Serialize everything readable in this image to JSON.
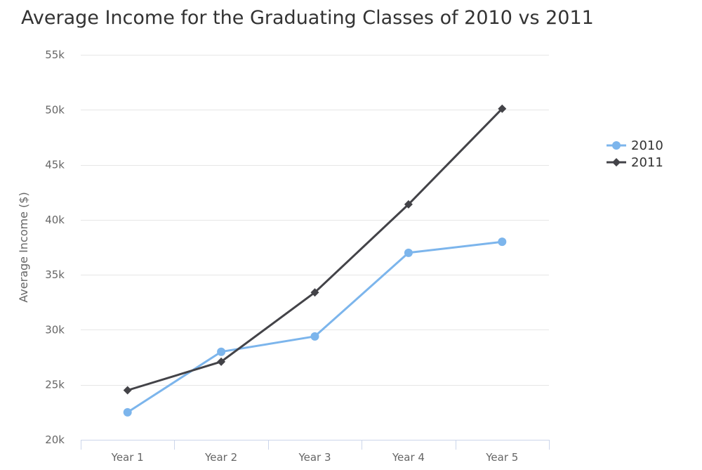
{
  "chart_data": {
    "type": "line",
    "title": "Average Income for the Graduating Classes of 2010 vs 2011",
    "ylabel": "Average Income ($)",
    "categories": [
      "Year 1",
      "Year 2",
      "Year 3",
      "Year 4",
      "Year 5"
    ],
    "ylim": [
      20000,
      55000
    ],
    "yticks": [
      20000,
      25000,
      30000,
      35000,
      40000,
      45000,
      50000,
      55000
    ],
    "ytick_labels": [
      "20k",
      "25k",
      "30k",
      "35k",
      "40k",
      "45k",
      "50k",
      "55k"
    ],
    "grid": true,
    "legend": "right",
    "series": [
      {
        "name": "2010",
        "color": "#7cb5ec",
        "marker": "circle",
        "values": [
          22500,
          28000,
          29400,
          37000,
          38000
        ]
      },
      {
        "name": "2011",
        "color": "#434348",
        "marker": "diamond",
        "values": [
          24500,
          27100,
          33400,
          41400,
          50100
        ]
      }
    ]
  }
}
